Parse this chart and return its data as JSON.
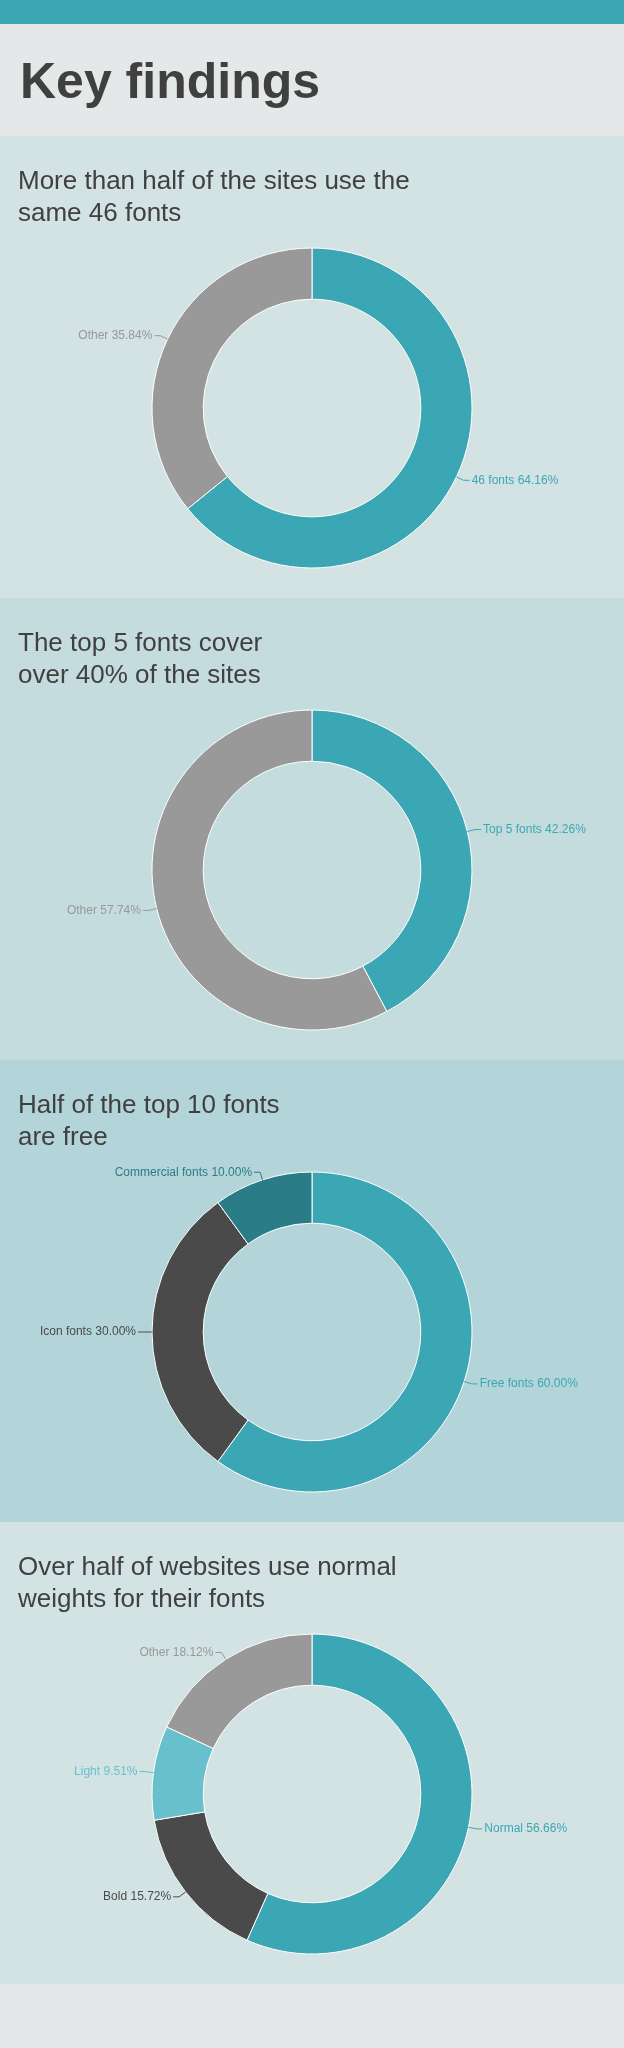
{
  "chart_data": [
    {
      "type": "other",
      "title": "Key findings"
    },
    {
      "type": "donut",
      "title": "More than half of the sites use the same 46 fonts",
      "categories": [
        "46 fonts",
        "Other"
      ],
      "values": [
        64.16,
        35.84
      ],
      "value_labels": [
        "64.16%",
        "35.84%"
      ],
      "colors": [
        "#3ba7b5",
        "#999999"
      ]
    },
    {
      "type": "donut",
      "title": "The top 5 fonts cover over 40% of the sites",
      "categories": [
        "Top 5 fonts",
        "Other"
      ],
      "values": [
        42.26,
        57.74
      ],
      "value_labels": [
        "42.26%",
        "57.74%"
      ],
      "colors": [
        "#3ba7b5",
        "#999999"
      ]
    },
    {
      "type": "donut",
      "title": "Half of the top 10 fonts are free",
      "categories": [
        "Free fonts",
        "Icon fonts",
        "Commercial fonts"
      ],
      "values": [
        60,
        30,
        10
      ],
      "value_labels": [
        "60.00%",
        "30.00%",
        "10.00%"
      ],
      "colors": [
        "#3ba7b5",
        "#4a4a4a",
        "#2a7d87"
      ]
    },
    {
      "type": "donut",
      "title": "Over half of websites use normal weights for their fonts",
      "categories": [
        "Normal",
        "Bold",
        "Light",
        "Other"
      ],
      "values": [
        56.66,
        15.72,
        9.51,
        18.12
      ],
      "value_labels": [
        "56.66%",
        "15.72%",
        "9.51%",
        "18.12%"
      ],
      "colors": [
        "#3ba7b5",
        "#4a4a4a",
        "#67c0cc",
        "#999999"
      ]
    }
  ]
}
